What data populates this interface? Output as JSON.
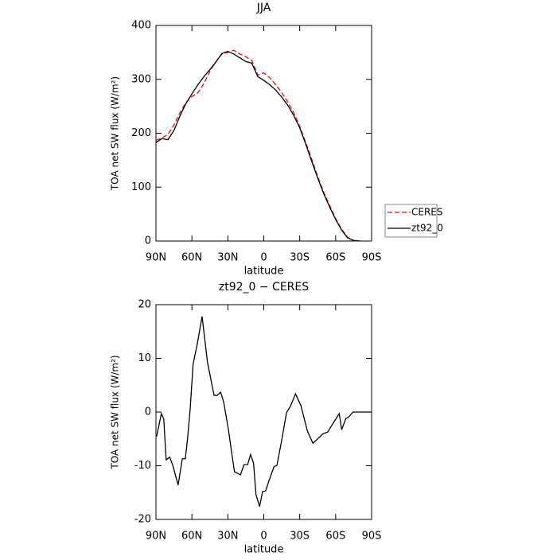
{
  "chart_data": [
    {
      "type": "line",
      "title": "JJA",
      "xlabel": "latitude",
      "ylabel": "TOA net SW flux (W/m²)",
      "x": [
        90,
        85,
        80,
        75,
        70,
        65,
        60,
        55,
        50,
        45,
        40,
        35,
        30,
        25,
        20,
        15,
        10,
        5,
        0,
        -5,
        -10,
        -15,
        -20,
        -25,
        -30,
        -35,
        -40,
        -45,
        -50,
        -55,
        -60,
        -65,
        -70,
        -75,
        -80,
        -85,
        -90
      ],
      "series": [
        {
          "name": "CERES",
          "color": "#ff0000",
          "style": "dashed",
          "values": [
            187,
            191,
            198,
            215,
            238,
            257,
            268,
            275,
            292,
            315,
            333,
            347,
            350,
            354,
            347,
            342,
            335,
            308,
            312,
            303,
            290,
            275,
            258,
            238,
            213,
            183,
            152,
            120,
            91,
            66,
            42,
            22,
            7,
            1,
            0,
            null,
            null
          ]
        },
        {
          "name": "zt92_0",
          "color": "#000000",
          "style": "solid",
          "values": [
            183,
            190,
            188,
            205,
            232,
            255,
            273,
            290,
            305,
            318,
            332,
            348,
            352,
            347,
            340,
            333,
            330,
            305,
            298,
            290,
            280,
            267,
            252,
            233,
            210,
            180,
            148,
            117,
            88,
            63,
            40,
            20,
            6,
            1,
            0,
            null,
            null
          ]
        }
      ],
      "xlim": [
        90,
        -90
      ],
      "xticks": [
        {
          "value": 90,
          "label": "90N"
        },
        {
          "value": 60,
          "label": "60N"
        },
        {
          "value": 30,
          "label": "30N"
        },
        0,
        {
          "value": -30,
          "label": "30S"
        },
        {
          "value": -60,
          "label": "60S"
        },
        {
          "value": -90,
          "label": "90S"
        }
      ],
      "ylim": [
        0,
        400
      ],
      "yticks": [
        0,
        100,
        200,
        300,
        400
      ],
      "legend": "right"
    },
    {
      "type": "line",
      "title": "zt92_0 − CERES",
      "xlabel": "latitude",
      "ylabel": "TOA net SW flux (W/m²)",
      "x": [
        89.5,
        85.5,
        83.5,
        81.5,
        78.5,
        76,
        71.5,
        68,
        65.5,
        63.5,
        61.5,
        59,
        55.5,
        51.5,
        47,
        41.5,
        39,
        36,
        33.5,
        29.5,
        24.5,
        19.5,
        16.5,
        13.5,
        11,
        8.5,
        6.5,
        3.5,
        1,
        -1.5,
        -4.5,
        -8.5,
        -11,
        -15,
        -19,
        -22.5,
        -26.5,
        -31,
        -36.5,
        -41,
        -45.5,
        -49,
        -53.5,
        -57.5,
        -63,
        -65,
        -68.5,
        -70.5,
        -74.5,
        -79,
        -89.5
      ],
      "series": [
        {
          "color": "#000000",
          "style": "solid",
          "values": [
            -4.6,
            -0.3,
            -1.3,
            -8.9,
            -8.4,
            -9.9,
            -13.6,
            -8.7,
            -8.7,
            -4.7,
            0.4,
            8.9,
            12.7,
            17.8,
            9.3,
            3.1,
            3.1,
            3.7,
            1.9,
            -3.3,
            -11.1,
            -11.7,
            -9.8,
            -9.8,
            -7.9,
            -9.6,
            -15.4,
            -17.6,
            -14.8,
            -14.7,
            -12.7,
            -10.2,
            -9.9,
            -5.2,
            -0.1,
            1.2,
            3.4,
            1.2,
            -3.6,
            -5.8,
            -4.9,
            -4.1,
            -3.7,
            -2.2,
            -0.3,
            -3.3,
            -1.2,
            -1,
            0,
            0,
            0
          ]
        }
      ],
      "xlim": [
        90,
        -90
      ],
      "xticks": [
        {
          "value": 90,
          "label": "90N"
        },
        {
          "value": 60,
          "label": "60N"
        },
        {
          "value": 30,
          "label": "30N"
        },
        0,
        {
          "value": -30,
          "label": "30S"
        },
        {
          "value": -60,
          "label": "60S"
        },
        {
          "value": -90,
          "label": "90S"
        }
      ],
      "ylim": [
        -20,
        20
      ],
      "yticks": [
        -20,
        -10,
        0,
        10,
        20
      ]
    }
  ]
}
